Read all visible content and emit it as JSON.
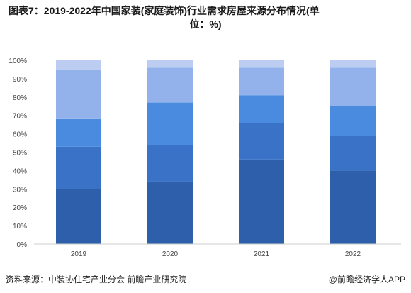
{
  "title_line1": "图表7：2019-2022年中国家装(家庭装饰)行业需求房屋来源分布情况(单",
  "title_line2": "位：%)",
  "source_text": "资料来源：中装协住宅产业分会 前瞻产业研究院",
  "brand_text": "@前瞻经济学人APP",
  "chart_data": {
    "type": "bar",
    "stacked": true,
    "categories": [
      "2019",
      "2020",
      "2021",
      "2022"
    ],
    "ylim": [
      0,
      100
    ],
    "yticks": [
      "0%",
      "10%",
      "20%",
      "30%",
      "40%",
      "50%",
      "60%",
      "70%",
      "80%",
      "90%",
      "100%"
    ],
    "grid": false,
    "legend": "none",
    "colors": [
      "#2e5faa",
      "#3a72c8",
      "#4a8be0",
      "#93b2ec",
      "#bccdf1"
    ],
    "series": [
      {
        "values": [
          30,
          34,
          46,
          40
        ]
      },
      {
        "values": [
          23,
          20,
          20,
          19
        ]
      },
      {
        "values": [
          15,
          23,
          15,
          16
        ]
      },
      {
        "values": [
          27,
          19,
          15,
          21
        ]
      },
      {
        "values": [
          5,
          4,
          4,
          4
        ]
      }
    ]
  }
}
